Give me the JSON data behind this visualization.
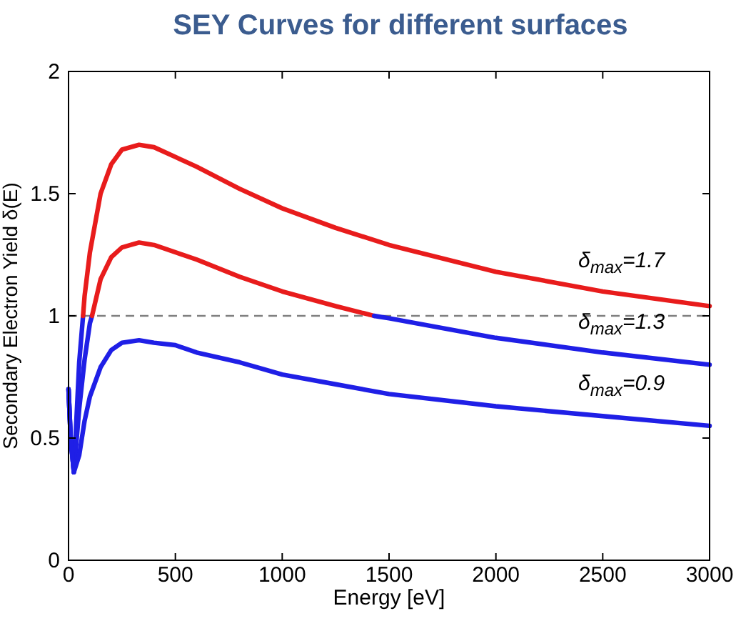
{
  "chart_data": {
    "type": "line",
    "title": "SEY Curves for different surfaces",
    "xlabel": "Energy [eV]",
    "ylabel": "Secondary Electron Yield δ(E)",
    "xlim": [
      0,
      3000
    ],
    "xticks": [
      0,
      500,
      1000,
      1500,
      2000,
      2500,
      3000
    ],
    "ylim": [
      0,
      2
    ],
    "yticks": [
      0,
      0.5,
      1,
      1.5,
      2
    ],
    "grid": false,
    "marker": "none",
    "line_style": "solid",
    "series": [
      {
        "color": "#1f1fe6",
        "x": [
          0,
          10,
          25,
          50,
          68
        ],
        "values": [
          0.7,
          0.5,
          0.36,
          0.81,
          1
        ]
      },
      {
        "color": "#e81c1c",
        "x": [
          68,
          75,
          100,
          150,
          200,
          250,
          330,
          400,
          500,
          600,
          800,
          1000,
          1250,
          1500,
          2000,
          2500,
          3000
        ],
        "values": [
          1,
          1.08,
          1.26,
          1.5,
          1.62,
          1.68,
          1.7,
          1.69,
          1.65,
          1.61,
          1.52,
          1.44,
          1.36,
          1.29,
          1.18,
          1.1,
          1.04
        ]
      },
      {
        "color": "#1f1fe6",
        "x": [
          0,
          10,
          25,
          50,
          75,
          100,
          110
        ],
        "values": [
          0.7,
          0.5,
          0.36,
          0.62,
          0.82,
          0.97,
          1
        ]
      },
      {
        "color": "#e81c1c",
        "x": [
          110,
          150,
          200,
          250,
          330,
          400,
          500,
          600,
          800,
          1000,
          1250,
          1430
        ],
        "values": [
          1,
          1.15,
          1.24,
          1.28,
          1.3,
          1.29,
          1.26,
          1.23,
          1.16,
          1.1,
          1.04,
          1
        ]
      },
      {
        "color": "#1f1fe6",
        "x": [
          1430,
          1500,
          2000,
          2500,
          3000
        ],
        "values": [
          1,
          0.99,
          0.91,
          0.85,
          0.8
        ]
      },
      {
        "color": "#1f1fe6",
        "x": [
          0,
          10,
          25,
          50,
          75,
          100,
          150,
          200,
          250,
          330,
          400,
          500,
          600,
          800,
          1000,
          1250,
          1500,
          2000,
          2500,
          3000
        ],
        "values": [
          0.7,
          0.5,
          0.36,
          0.43,
          0.57,
          0.67,
          0.79,
          0.86,
          0.89,
          0.9,
          0.89,
          0.88,
          0.85,
          0.81,
          0.76,
          0.72,
          0.68,
          0.63,
          0.59,
          0.55
        ]
      }
    ],
    "ref_lines": [
      {
        "axis": "y",
        "value": 1,
        "color": "#808080",
        "line_style": "dashed"
      }
    ],
    "annotations": [
      "δ$_{max}$=1.7",
      "δ$_{max}$=1.3",
      "δ$_{max}$=0.9"
    ]
  }
}
